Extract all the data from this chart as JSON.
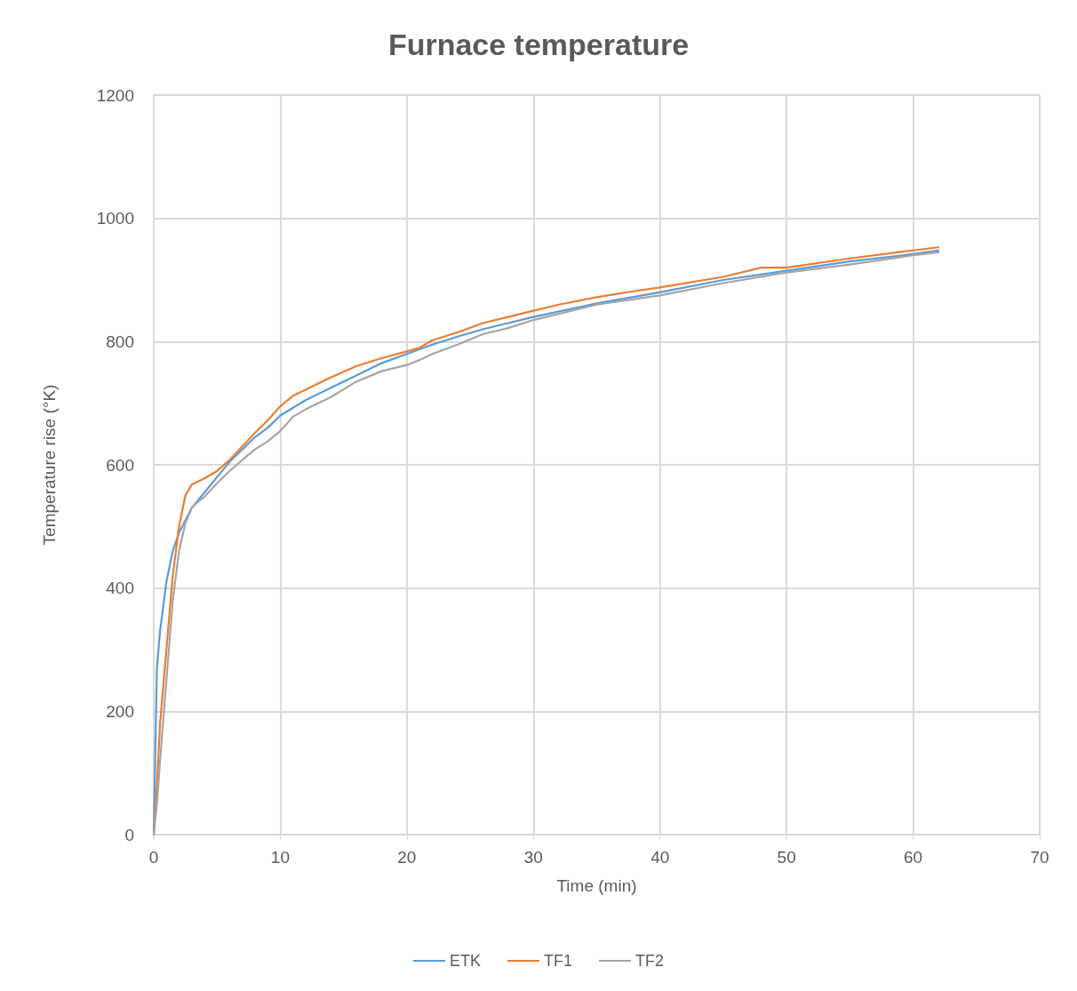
{
  "chart_data": {
    "type": "line",
    "title": "Furnace temperature",
    "xlabel": "Time (min)",
    "ylabel": "Temperature rise (°K)",
    "xlim": [
      0,
      70
    ],
    "xticks": [
      0,
      10,
      20,
      30,
      40,
      50,
      60,
      70
    ],
    "ylim": [
      0,
      1200
    ],
    "yticks": [
      0,
      200,
      400,
      600,
      800,
      1000,
      1200
    ],
    "grid": true,
    "legend": "bottom",
    "marker": "none",
    "line_style": "solid",
    "series": [
      {
        "name": "ETK",
        "color": "#5b9bd5",
        "x": [
          0,
          0.25,
          0.5,
          1,
          1.5,
          2,
          2.5,
          3,
          4,
          5,
          6,
          7,
          8,
          9,
          10,
          12,
          14,
          16,
          18,
          20,
          22,
          24,
          26,
          28,
          30,
          35,
          40,
          45,
          50,
          55,
          60,
          62
        ],
        "values": [
          0,
          270,
          330,
          410,
          460,
          490,
          510,
          530,
          555,
          580,
          605,
          625,
          645,
          660,
          680,
          705,
          725,
          745,
          765,
          780,
          795,
          808,
          820,
          830,
          840,
          862,
          880,
          900,
          915,
          930,
          942,
          948
        ]
      },
      {
        "name": "TF1",
        "color": "#ed7d31",
        "x": [
          0,
          0.25,
          0.5,
          1,
          1.5,
          2,
          2.5,
          3,
          4,
          5,
          6,
          7,
          8,
          9,
          10,
          11,
          12,
          14,
          16,
          18,
          20,
          21,
          22,
          24,
          26,
          28,
          30,
          32,
          35,
          38,
          40,
          45,
          48,
          50,
          55,
          60,
          62
        ],
        "values": [
          0,
          80,
          180,
          300,
          420,
          500,
          550,
          568,
          578,
          590,
          608,
          630,
          652,
          672,
          695,
          712,
          722,
          742,
          760,
          773,
          784,
          790,
          802,
          815,
          830,
          840,
          850,
          860,
          872,
          882,
          888,
          905,
          920,
          920,
          935,
          948,
          953
        ]
      },
      {
        "name": "TF2",
        "color": "#a5a5a5",
        "x": [
          0,
          0.25,
          0.5,
          1,
          1.5,
          2,
          2.5,
          3,
          3.5,
          4,
          5,
          6,
          7,
          8,
          9,
          10,
          11,
          12,
          14,
          16,
          18,
          20,
          21,
          22,
          24,
          26,
          28,
          30,
          35,
          40,
          45,
          50,
          55,
          60,
          62
        ],
        "values": [
          0,
          50,
          120,
          250,
          380,
          460,
          505,
          530,
          540,
          548,
          570,
          590,
          608,
          625,
          638,
          655,
          678,
          690,
          710,
          735,
          752,
          762,
          770,
          780,
          795,
          812,
          822,
          835,
          860,
          875,
          895,
          912,
          925,
          940,
          945
        ]
      }
    ]
  }
}
